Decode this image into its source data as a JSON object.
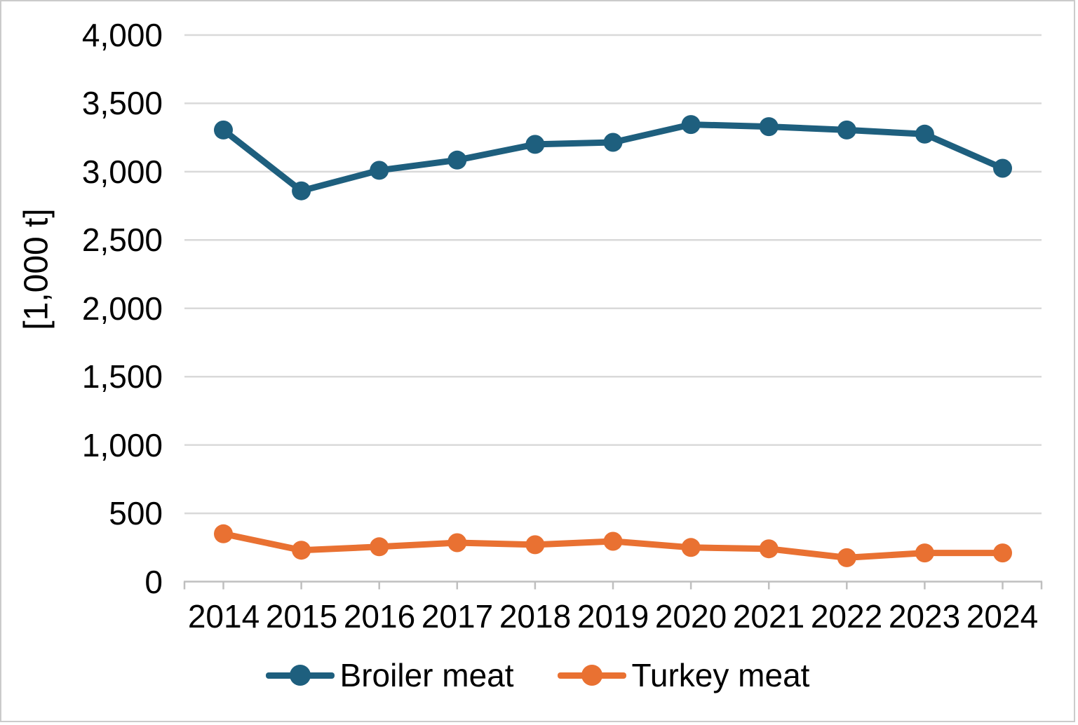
{
  "chart_data": {
    "type": "line",
    "title": "",
    "xlabel": "",
    "ylabel": "[1,000 t]",
    "categories": [
      "2014",
      "2015",
      "2016",
      "2017",
      "2018",
      "2019",
      "2020",
      "2021",
      "2022",
      "2023",
      "2024"
    ],
    "series": [
      {
        "name": "Broiler meat",
        "color": "#1E5F7E",
        "values": [
          3305,
          2860,
          3010,
          3085,
          3200,
          3215,
          3345,
          3330,
          3305,
          3275,
          3025
        ]
      },
      {
        "name": "Turkey meat",
        "color": "#E97132",
        "values": [
          350,
          230,
          255,
          285,
          270,
          295,
          250,
          240,
          175,
          210,
          210
        ]
      }
    ],
    "ylim": [
      0,
      4000
    ],
    "ytick_interval": 500,
    "ytick_labels": [
      "0",
      "500",
      "1,000",
      "1,500",
      "2,000",
      "2,500",
      "3,000",
      "3,500",
      "4,000"
    ],
    "grid": "horizontal-only",
    "legend_position": "bottom-center",
    "marker": "circle"
  },
  "styles": {
    "background": "#FFFFFF",
    "border_color": "#CBCBCB",
    "gridline_color": "#D9D9D9",
    "axis_color": "#BFBFBF",
    "text_color": "#000000"
  }
}
